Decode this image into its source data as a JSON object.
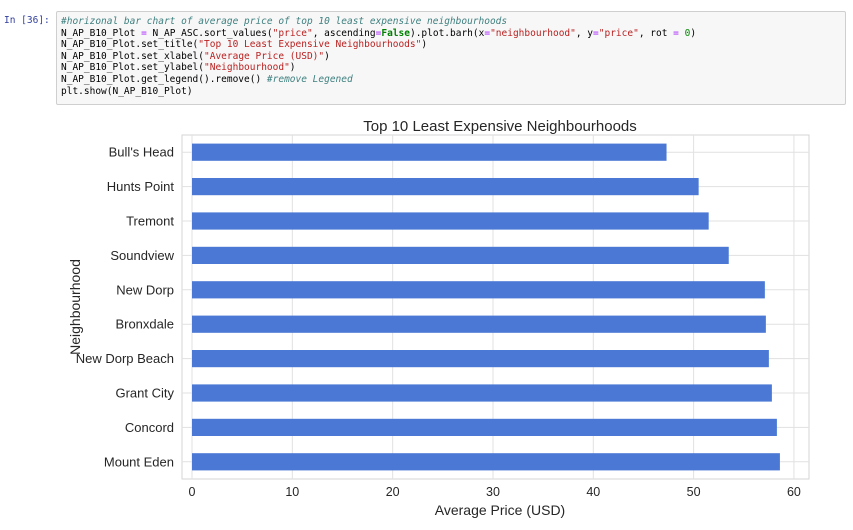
{
  "cell": {
    "prompt": "In [36]:",
    "lines": [
      [
        {
          "t": "#horizonal bar chart of average price of top 10 least expensive neighbourhoods",
          "c": "cm"
        }
      ],
      [
        {
          "t": "N_AP_B10_Plot ",
          "c": ""
        },
        {
          "t": "=",
          "c": "op"
        },
        {
          "t": " N_AP_ASC.sort_values(",
          "c": ""
        },
        {
          "t": "\"price\"",
          "c": "st"
        },
        {
          "t": ", ascending",
          "c": ""
        },
        {
          "t": "=",
          "c": "op"
        },
        {
          "t": "False",
          "c": "kw"
        },
        {
          "t": ").plot.barh(x",
          "c": ""
        },
        {
          "t": "=",
          "c": "op"
        },
        {
          "t": "\"neighbourhood\"",
          "c": "st"
        },
        {
          "t": ", y",
          "c": ""
        },
        {
          "t": "=",
          "c": "op"
        },
        {
          "t": "\"price\"",
          "c": "st"
        },
        {
          "t": ", rot ",
          "c": ""
        },
        {
          "t": "=",
          "c": "op"
        },
        {
          "t": " 0",
          "c": "nu"
        },
        {
          "t": ")",
          "c": ""
        }
      ],
      [
        {
          "t": "N_AP_B10_Plot.set_title(",
          "c": ""
        },
        {
          "t": "\"Top 10 Least Expensive Neighbourhoods\"",
          "c": "st"
        },
        {
          "t": ")",
          "c": ""
        }
      ],
      [
        {
          "t": "N_AP_B10_Plot.set_xlabel(",
          "c": ""
        },
        {
          "t": "\"Average Price (USD)\"",
          "c": "st"
        },
        {
          "t": ")",
          "c": ""
        }
      ],
      [
        {
          "t": "N_AP_B10_Plot.set_ylabel(",
          "c": ""
        },
        {
          "t": "\"Neighbourhood\"",
          "c": "st"
        },
        {
          "t": ")",
          "c": ""
        }
      ],
      [
        {
          "t": "N_AP_B10_Plot.get_legend().remove() ",
          "c": ""
        },
        {
          "t": "#remove Legened",
          "c": "cm"
        }
      ],
      [
        {
          "t": "plt.show(N_AP_B10_Plot)",
          "c": ""
        }
      ]
    ]
  },
  "colors": {
    "bar": "#4A78D4",
    "grid": "#e1e1e1",
    "axis_text": "#262626"
  },
  "chart_data": {
    "type": "bar",
    "orientation": "horizontal",
    "title": "Top 10 Least Expensive Neighbourhoods",
    "xlabel": "Average Price (USD)",
    "ylabel": "Neighbourhood",
    "categories": [
      "Bull's Head",
      "Hunts Point",
      "Tremont",
      "Soundview",
      "New Dorp",
      "Bronxdale",
      "New Dorp Beach",
      "Grant City",
      "Concord",
      "Mount Eden"
    ],
    "values": [
      47.3,
      50.5,
      51.5,
      53.5,
      57.1,
      57.2,
      57.5,
      57.8,
      58.3,
      58.6
    ],
    "xlim": [
      0,
      61.5
    ],
    "xticks": [
      0,
      10,
      20,
      30,
      40,
      50,
      60
    ],
    "grid": true,
    "legend": "none"
  }
}
